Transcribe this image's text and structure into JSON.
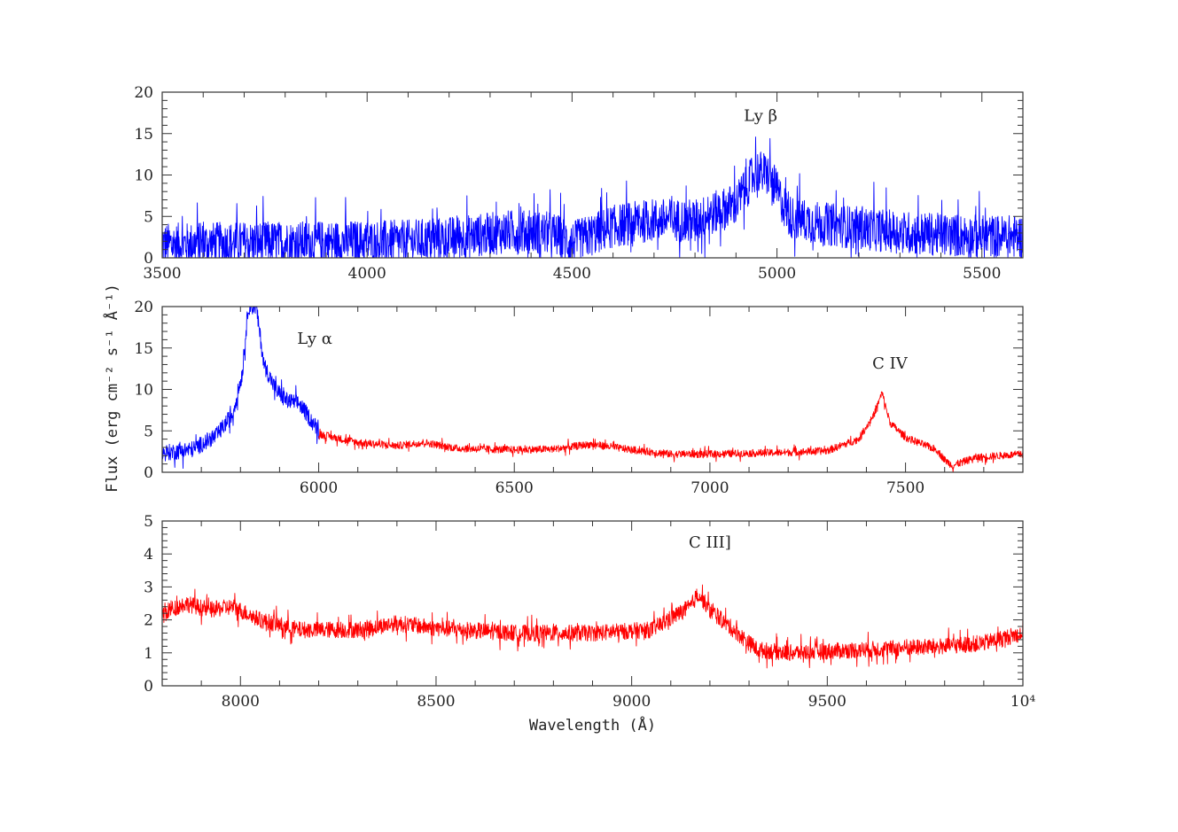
{
  "chart_data": [
    {
      "type": "line",
      "xlim": [
        3500,
        5600
      ],
      "ylim": [
        0,
        20
      ],
      "x_ticks": [
        3500,
        4000,
        4500,
        5000,
        5500
      ],
      "y_ticks": [
        0,
        5,
        10,
        15,
        20
      ],
      "annotations": [
        {
          "text": "Ly β",
          "x": 4960,
          "y": 16.5
        }
      ],
      "series": [
        {
          "color": "#0000ff",
          "noise": 2.6,
          "points": [
            [
              3500,
              1.6
            ],
            [
              3700,
              1.8
            ],
            [
              3900,
              1.9
            ],
            [
              4100,
              2.0
            ],
            [
              4250,
              2.6
            ],
            [
              4350,
              3.2
            ],
            [
              4450,
              3.0
            ],
            [
              4500,
              1.8
            ],
            [
              4600,
              3.8
            ],
            [
              4700,
              4.6
            ],
            [
              4800,
              4.5
            ],
            [
              4900,
              6.5
            ],
            [
              4950,
              10.5
            ],
            [
              4980,
              10.0
            ],
            [
              5030,
              5.0
            ],
            [
              5100,
              4.2
            ],
            [
              5200,
              3.6
            ],
            [
              5300,
              3.1
            ],
            [
              5400,
              2.8
            ],
            [
              5500,
              2.6
            ],
            [
              5600,
              2.6
            ]
          ]
        }
      ]
    },
    {
      "type": "line",
      "xlim": [
        5600,
        7800
      ],
      "ylim": [
        0,
        20
      ],
      "x_ticks": [
        6000,
        6500,
        7000,
        7500
      ],
      "y_ticks": [
        0,
        5,
        10,
        15,
        20
      ],
      "annotations": [
        {
          "text": "Ly α",
          "x": 5990,
          "y": 15.5
        },
        {
          "text": "C IV",
          "x": 7460,
          "y": 12.5
        }
      ],
      "series": [
        {
          "color": "#0000ff",
          "noise": 1.0,
          "points": [
            [
              5600,
              2.3
            ],
            [
              5680,
              2.8
            ],
            [
              5740,
              4.5
            ],
            [
              5780,
              7.0
            ],
            [
              5805,
              12.0
            ],
            [
              5820,
              20.0
            ],
            [
              5840,
              20.0
            ],
            [
              5860,
              13.0
            ],
            [
              5890,
              10.0
            ],
            [
              5920,
              8.6
            ],
            [
              5950,
              8.3
            ],
            [
              5970,
              7.0
            ],
            [
              6000,
              5.0
            ]
          ]
        },
        {
          "color": "#ff0000",
          "noise": 0.45,
          "points": [
            [
              6000,
              4.6
            ],
            [
              6100,
              3.6
            ],
            [
              6200,
              3.2
            ],
            [
              6270,
              3.6
            ],
            [
              6350,
              2.9
            ],
            [
              6500,
              2.7
            ],
            [
              6600,
              2.8
            ],
            [
              6700,
              3.4
            ],
            [
              6800,
              2.7
            ],
            [
              6900,
              2.2
            ],
            [
              7000,
              2.2
            ],
            [
              7100,
              2.3
            ],
            [
              7200,
              2.4
            ],
            [
              7300,
              2.6
            ],
            [
              7380,
              4.0
            ],
            [
              7420,
              7.0
            ],
            [
              7440,
              9.6
            ],
            [
              7460,
              6.0
            ],
            [
              7500,
              4.2
            ],
            [
              7580,
              2.7
            ],
            [
              7600,
              1.5
            ],
            [
              7620,
              0.8
            ],
            [
              7680,
              1.8
            ],
            [
              7800,
              2.2
            ]
          ]
        }
      ]
    },
    {
      "type": "line",
      "xlim": [
        7800,
        10000
      ],
      "ylim": [
        0,
        5
      ],
      "x_ticks": [
        8000,
        8500,
        9000,
        9500,
        10000
      ],
      "x_tick_labels": [
        "8000",
        "8500",
        "9000",
        "9500",
        "10⁴"
      ],
      "y_ticks": [
        0,
        1,
        2,
        3,
        4,
        5
      ],
      "xlabel": "Wavelength (Å)",
      "annotations": [
        {
          "text": "C III]",
          "x": 9200,
          "y": 4.2
        }
      ],
      "series": [
        {
          "color": "#ff0000",
          "noise": 0.25,
          "points": [
            [
              7800,
              2.2
            ],
            [
              7860,
              2.5
            ],
            [
              7920,
              2.3
            ],
            [
              7980,
              2.4
            ],
            [
              8050,
              2.0
            ],
            [
              8150,
              1.7
            ],
            [
              8300,
              1.7
            ],
            [
              8400,
              1.9
            ],
            [
              8500,
              1.75
            ],
            [
              8700,
              1.6
            ],
            [
              8900,
              1.6
            ],
            [
              9050,
              1.7
            ],
            [
              9150,
              2.4
            ],
            [
              9170,
              2.8
            ],
            [
              9200,
              2.3
            ],
            [
              9250,
              1.8
            ],
            [
              9320,
              1.1
            ],
            [
              9400,
              1.0
            ],
            [
              9600,
              1.1
            ],
            [
              9800,
              1.2
            ],
            [
              9900,
              1.3
            ],
            [
              10000,
              1.6
            ]
          ]
        }
      ]
    }
  ],
  "ylabel": "Flux (erg cm⁻² s⁻¹ Å⁻¹)"
}
